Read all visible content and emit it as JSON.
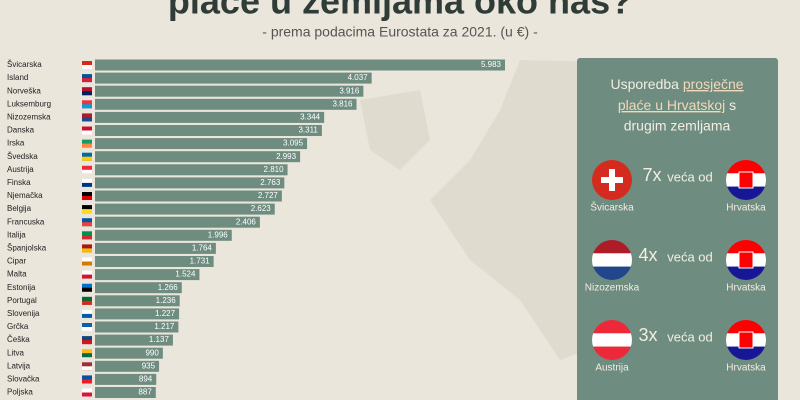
{
  "chart_data": {
    "type": "bar",
    "orientation": "horizontal",
    "title": "plaće u zemljama oko nas?",
    "subtitle": "- prema podacima Eurostata za 2021. (u €) -",
    "color": "#6e8c80",
    "categories": [
      "Švicarska",
      "Island",
      "Norveška",
      "Luksemburg",
      "Nizozemska",
      "Danska",
      "Irska",
      "Švedska",
      "Austrija",
      "Finska",
      "Njemačka",
      "Belgija",
      "Francuska",
      "Italija",
      "Španjolska",
      "Cipar",
      "Malta",
      "Estonija",
      "Portugal",
      "Slovenija",
      "Grčka",
      "Češka",
      "Litva",
      "Latvija",
      "Slovačka",
      "Poljska"
    ],
    "values": [
      5983,
      4037,
      3916,
      3816,
      3344,
      3311,
      3095,
      2993,
      2810,
      2763,
      2727,
      2623,
      2406,
      1996,
      1764,
      1731,
      1524,
      1266,
      1236,
      1227,
      1217,
      1137,
      990,
      935,
      894,
      887
    ],
    "value_labels": [
      "5.983",
      "4.037",
      "3.916",
      "3.816",
      "3.344",
      "3.311",
      "3.095",
      "2.993",
      "2.810",
      "2.763",
      "2.727",
      "2.623",
      "2.406",
      "1.996",
      "1.764",
      "1.731",
      "1.524",
      "1.266",
      "1.236",
      "1.227",
      "1.217",
      "1.137",
      "990",
      "935",
      "894",
      "887"
    ]
  },
  "panel": {
    "title_1": "Usporedba",
    "title_2": "prosječne",
    "title_3": "plaće u Hrvatskoj",
    "title_4": "s",
    "title_5": "drugim zemljama",
    "comparisons": [
      {
        "factor": "7x",
        "text": "veća od",
        "country": "Švicarska",
        "reference": "Hrvatska"
      },
      {
        "factor": "4x",
        "text": "veća od",
        "country": "Nizozemska",
        "reference": "Hrvatska"
      },
      {
        "factor": "3x",
        "text": "veća od",
        "country": "Austrija",
        "reference": "Hrvatska"
      }
    ]
  }
}
